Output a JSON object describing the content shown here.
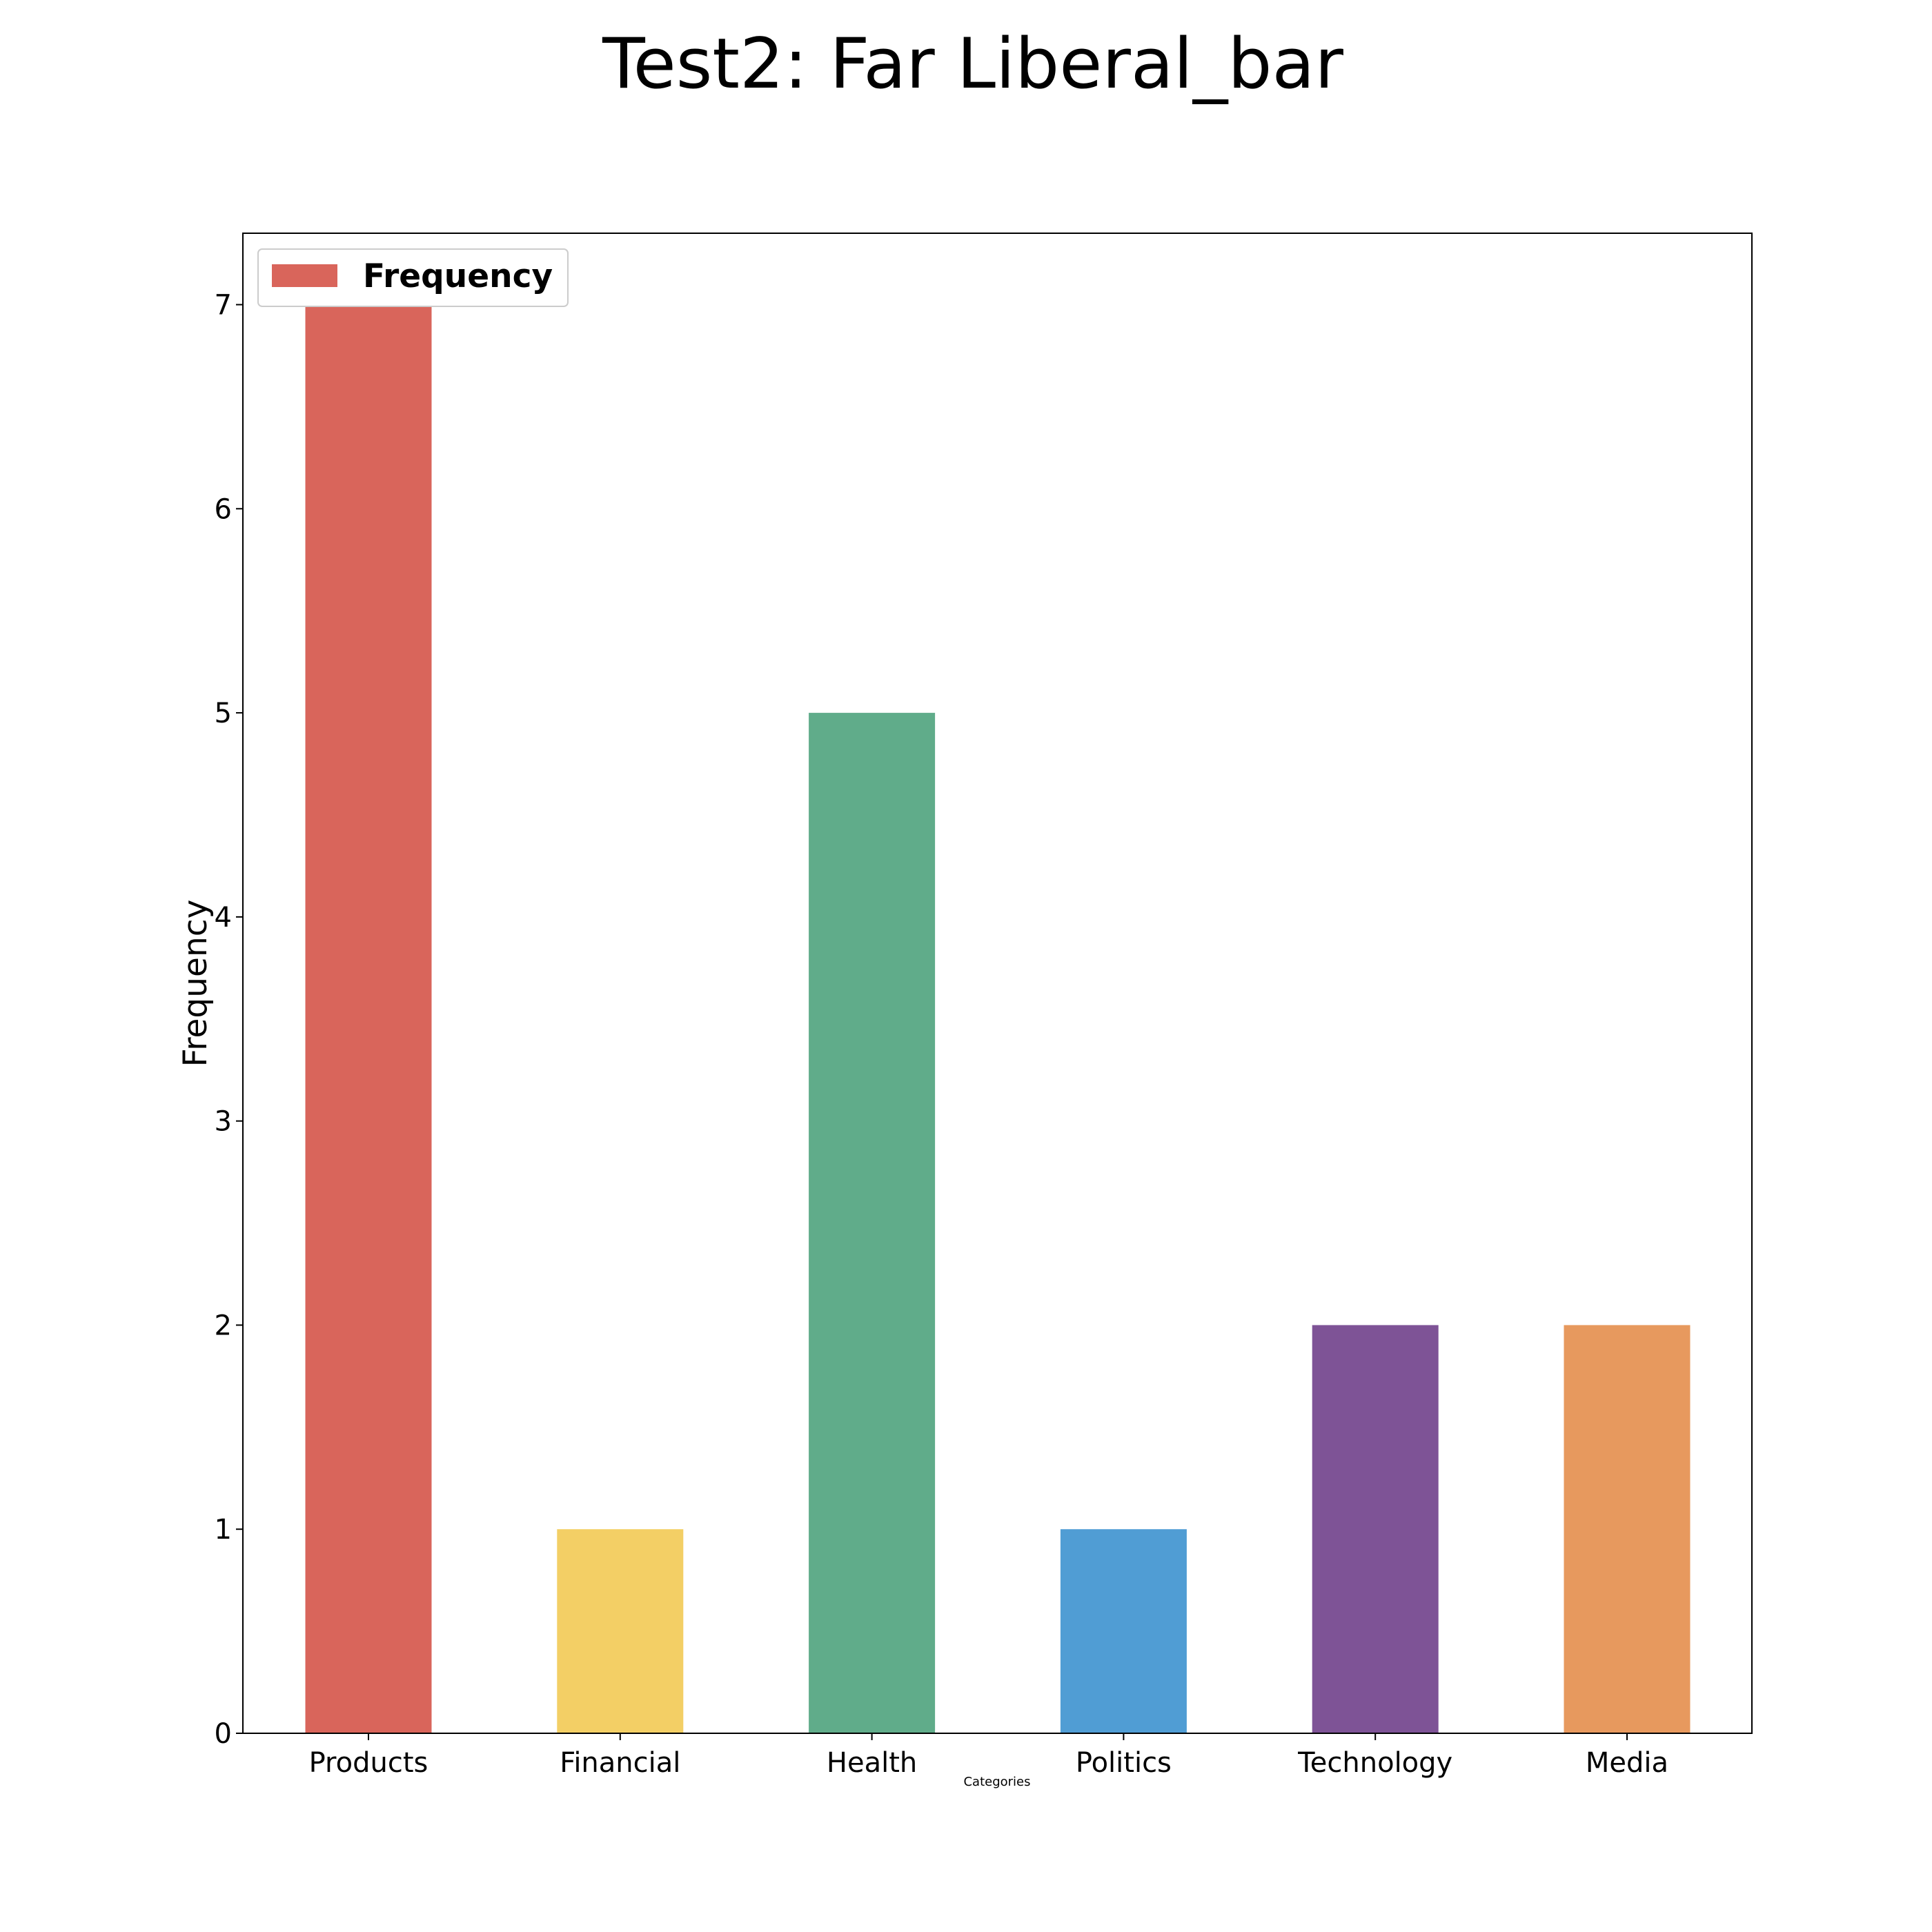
{
  "chart_data": {
    "type": "bar",
    "title": "Test2: Far Liberal_bar",
    "xlabel": "Categories",
    "ylabel": "Frequency",
    "categories": [
      "Products",
      "Financial",
      "Health",
      "Politics",
      "Technology",
      "Media"
    ],
    "series": [
      {
        "name": "Frequency",
        "values": [
          7,
          1,
          5,
          1,
          2,
          2
        ],
        "colors": [
          "#d9655b",
          "#f3cf65",
          "#60ac8a",
          "#509dd4",
          "#7e5396",
          "#e7995e"
        ]
      }
    ],
    "yticks": [
      0,
      1,
      2,
      3,
      4,
      5,
      6,
      7
    ],
    "ylim": [
      0,
      7.35
    ],
    "grid": false,
    "legend_position": "top-left"
  }
}
